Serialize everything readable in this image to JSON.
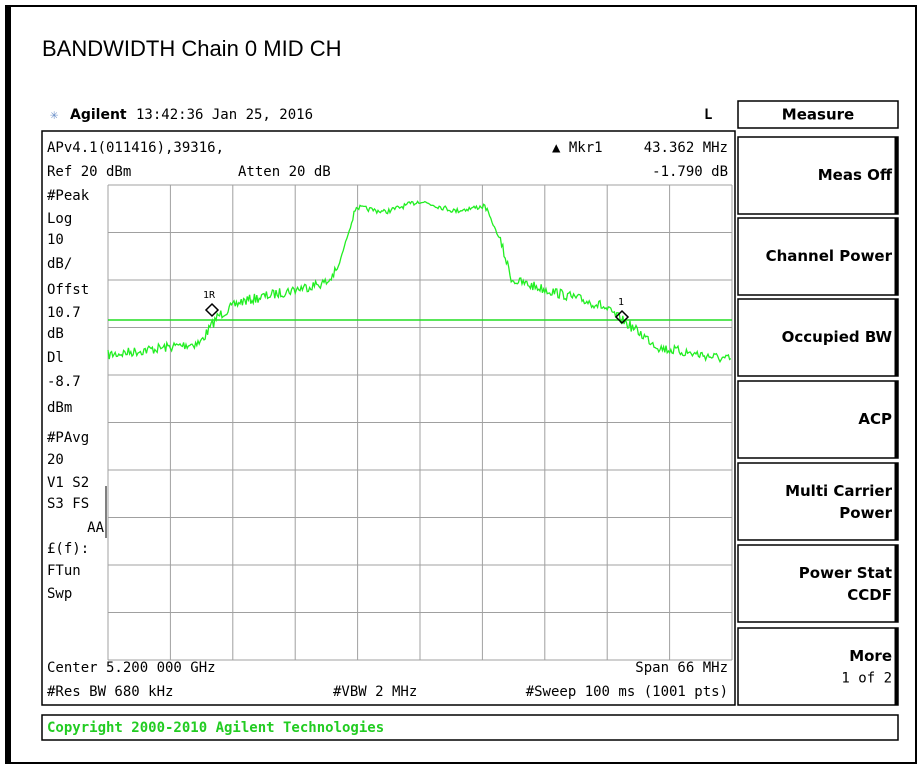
{
  "title": "BANDWIDTH Chain 0 MID CH",
  "header": {
    "brand": "Agilent",
    "time": "13:42:36  Jan 25, 2016",
    "mode": "L"
  },
  "screen": {
    "line1": "APv4.1(011416),39316,",
    "marker": "▲ Mkr1",
    "marker_freq": "43.362 MHz",
    "ref": "Ref 20 dBm",
    "atten": "Atten 20 dB",
    "marker_level": "-1.790 dB",
    "left_info": [
      "#Peak",
      "Log",
      "10",
      "dB/",
      "Offst",
      "10.7",
      "dB",
      "Dl",
      "-8.7",
      "dBm",
      "#PAvg",
      "20",
      "V1  S2",
      "S3  FS",
      "AA",
      "£(f):",
      "FTun",
      "Swp"
    ],
    "center": "Center 5.200 000 GHz",
    "span": "Span 66 MHz",
    "res_bw": "#Res BW 680 kHz",
    "vbw": "#VBW 2 MHz",
    "sweep": "#Sweep 100 ms (1001 pts)",
    "marker_labels": [
      "1R",
      "1"
    ]
  },
  "softkeys": {
    "menu": "Measure",
    "keys": [
      [
        "Meas Off"
      ],
      [
        "Channel Power"
      ],
      [
        "Occupied BW"
      ],
      [
        "ACP"
      ],
      [
        "Multi Carrier",
        "Power"
      ],
      [
        "Power Stat",
        "CCDF"
      ],
      [
        "More",
        "1 of 2"
      ]
    ]
  },
  "copyright": "Copyright 2000-2010 Agilent Technologies"
}
